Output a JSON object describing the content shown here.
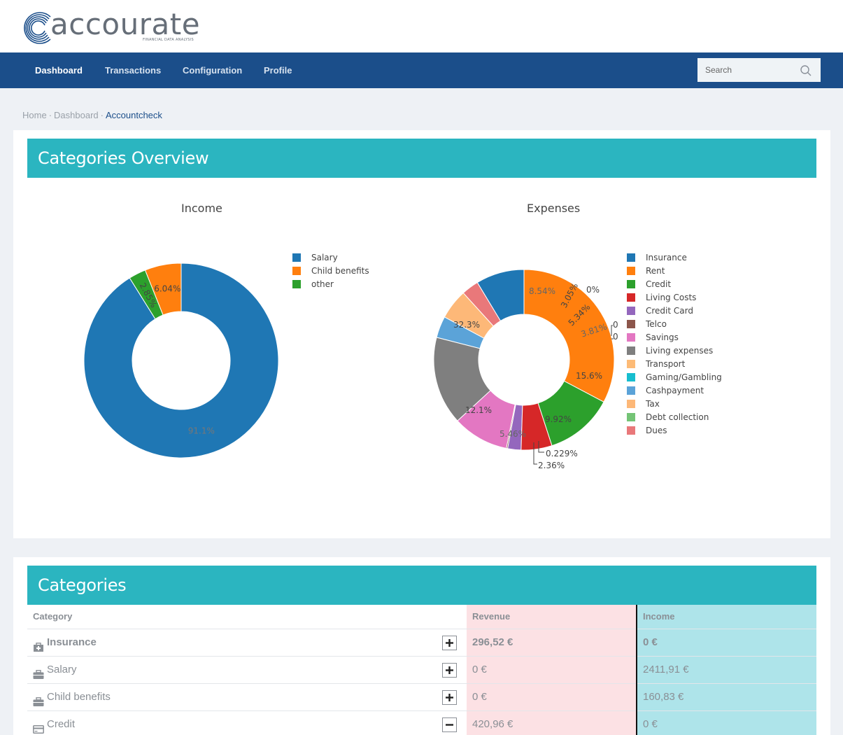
{
  "app": {
    "logo_text": "accourate",
    "logo_subtitle": "FINANCIAL DATA ANALYSIS"
  },
  "nav": {
    "items": [
      {
        "label": "Dashboard",
        "active": true
      },
      {
        "label": "Transactions",
        "active": false
      },
      {
        "label": "Configuration",
        "active": false
      },
      {
        "label": "Profile",
        "active": false
      }
    ],
    "search_placeholder": "Search",
    "search_icon": "search-icon"
  },
  "breadcrumb": {
    "items": [
      "Home",
      "Dashboard",
      "Accountcheck"
    ],
    "separator": "·"
  },
  "overview": {
    "title": "Categories Overview"
  },
  "chart_data": [
    {
      "type": "pie",
      "title": "Income",
      "hole": true,
      "categories": [
        "Salary",
        "Child benefits",
        "other"
      ],
      "values": [
        91.1,
        6.04,
        2.85
      ],
      "labels": [
        "91.1%",
        "6.04%",
        "2.85%"
      ],
      "colors": [
        "#1f77b4",
        "#ff7f0e",
        "#2ca02c"
      ],
      "legend_position": "right"
    },
    {
      "type": "pie",
      "title": "Expenses",
      "hole": true,
      "categories": [
        "Insurance",
        "Rent",
        "Credit",
        "Living Costs",
        "Credit Card",
        "Telco",
        "Savings",
        "Living expenses",
        "Transport",
        "Gaming/Gambling",
        "Cashpayment",
        "Tax",
        "Debt collection",
        "Dues"
      ],
      "values": [
        8.54,
        32.3,
        12.1,
        5.46,
        2.36,
        0.229,
        9.92,
        15.6,
        0,
        0,
        3.81,
        5.34,
        0,
        3.05
      ],
      "labels": [
        "8.54%",
        "32.3%",
        "12.1%",
        "5.46%",
        "2.36%",
        "0.229%",
        "9.92%",
        "15.6%",
        "0",
        "0",
        "3.81%",
        "5.34%",
        "0%",
        "3.05%"
      ],
      "colors": [
        "#1f77b4",
        "#ff7f0e",
        "#2ca02c",
        "#d62728",
        "#9467bd",
        "#8c564b",
        "#e377c2",
        "#7f7f7f",
        "#fdbb77",
        "#17becf",
        "#5ba3d8",
        "#fdb878",
        "#74c476",
        "#e9787a"
      ],
      "legend_position": "right"
    }
  ],
  "categories_panel": {
    "title": "Categories",
    "columns": [
      "Category",
      "Revenue",
      "Income"
    ],
    "rows": [
      {
        "icon": "medkit-icon",
        "name": "Insurance",
        "bold": true,
        "toggle": "plus",
        "revenue": "296,52 €",
        "income": "0 €"
      },
      {
        "icon": "briefcase-icon",
        "name": "Salary",
        "bold": false,
        "toggle": "plus",
        "revenue": "0 €",
        "income": "2411,91 €"
      },
      {
        "icon": "briefcase-icon",
        "name": "Child benefits",
        "bold": false,
        "toggle": "plus",
        "revenue": "0 €",
        "income": "160,83 €"
      },
      {
        "icon": "credit-card-icon",
        "name": "Credit",
        "bold": false,
        "toggle": "minus",
        "revenue": "420,96 €",
        "income": "0 €"
      }
    ]
  }
}
